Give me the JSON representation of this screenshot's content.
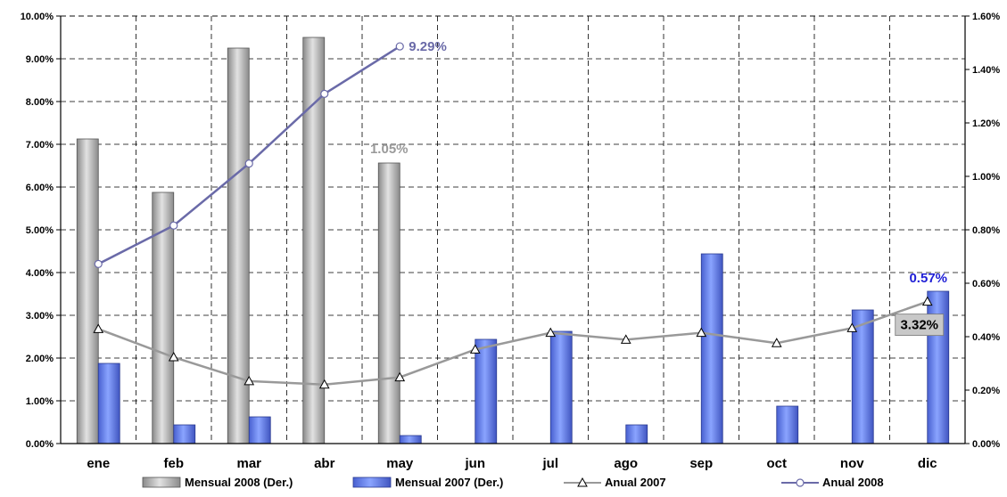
{
  "chart_data": {
    "type": "bar",
    "categories": [
      "ene",
      "feb",
      "mar",
      "abr",
      "may",
      "jun",
      "jul",
      "ago",
      "sep",
      "oct",
      "nov",
      "dic"
    ],
    "series": [
      {
        "name": "Mensual 2008 (Der.)",
        "type": "bar",
        "axis": "right",
        "color": "#a8a8a8",
        "values": [
          1.14,
          0.94,
          1.48,
          1.52,
          1.05,
          null,
          null,
          null,
          null,
          null,
          null,
          null
        ]
      },
      {
        "name": "Mensual 2007 (Der.)",
        "type": "bar",
        "axis": "right",
        "color": "#6680ee",
        "values": [
          0.3,
          0.07,
          0.1,
          null,
          0.03,
          0.39,
          0.42,
          0.07,
          0.71,
          0.14,
          0.5,
          0.57
        ]
      },
      {
        "name": "Anual 2007",
        "type": "line",
        "axis": "left",
        "color": "#999999",
        "marker": "triangle",
        "values": [
          2.68,
          2.02,
          1.46,
          1.38,
          1.55,
          2.2,
          2.59,
          2.43,
          2.59,
          2.35,
          2.7,
          3.32
        ]
      },
      {
        "name": "Anual 2008",
        "type": "line",
        "axis": "left",
        "color": "#6a6aa8",
        "marker": "circle",
        "values": [
          4.2,
          5.1,
          6.55,
          8.18,
          9.29,
          null,
          null,
          null,
          null,
          null,
          null,
          null
        ]
      }
    ],
    "y_left": {
      "ylim": [
        0,
        10
      ],
      "ticks": [
        "0.00%",
        "1.00%",
        "2.00%",
        "3.00%",
        "4.00%",
        "5.00%",
        "6.00%",
        "7.00%",
        "8.00%",
        "9.00%",
        "10.00%"
      ]
    },
    "y_right": {
      "ylim": [
        0,
        1.6
      ],
      "ticks": [
        "0.00%",
        "0.20%",
        "0.40%",
        "0.60%",
        "0.80%",
        "1.00%",
        "1.20%",
        "1.40%",
        "1.60%"
      ]
    },
    "annotations": [
      {
        "text": "9.29%",
        "series": "Anual 2008",
        "category": "may",
        "color": "#6a6aa8"
      },
      {
        "text": "1.05%",
        "series": "Mensual 2008 (Der.)",
        "category": "may",
        "color": "#999999"
      },
      {
        "text": "0.57%",
        "series": "Mensual 2007 (Der.)",
        "category": "dic",
        "color": "#1f1fd6"
      },
      {
        "text": "3.32%",
        "series": "Anual 2007",
        "category": "dic",
        "color": "#000000",
        "boxed": true
      }
    ],
    "grid": true,
    "legend_position": "bottom"
  }
}
